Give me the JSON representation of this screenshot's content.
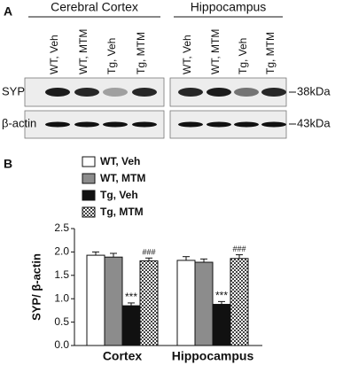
{
  "panel_a": {
    "label": "A",
    "groups": [
      "Cerebral Cortex",
      "Hippocampus"
    ],
    "lanes": [
      "WT, Veh",
      "WT, MTM",
      "Tg, Veh",
      "Tg, MTM"
    ],
    "rows": [
      {
        "name": "SYP",
        "size": "38kDa"
      },
      {
        "name": "β-actin",
        "size": "43kDa"
      }
    ]
  },
  "chart_data": {
    "type": "bar",
    "label": "B",
    "ylabel": "SYP/ β-actin",
    "categories": [
      "Cortex",
      "Hippocampus"
    ],
    "series": [
      {
        "name": "WT, Veh",
        "color": "#ffffff",
        "values": [
          1.93,
          1.82
        ],
        "errors": [
          0.07,
          0.08
        ]
      },
      {
        "name": "WT, MTM",
        "color": "#8c8c8c",
        "values": [
          1.89,
          1.78
        ],
        "errors": [
          0.08,
          0.07
        ]
      },
      {
        "name": "Tg, Veh",
        "color": "#111111",
        "values": [
          0.85,
          0.88
        ],
        "errors": [
          0.06,
          0.06
        ],
        "annotations": [
          "***",
          "***"
        ]
      },
      {
        "name": "Tg, MTM",
        "color": "#9a9a9a",
        "pattern": "checkerboard",
        "values": [
          1.81,
          1.86
        ],
        "errors": [
          0.06,
          0.08
        ],
        "annotations": [
          "###",
          "###"
        ]
      }
    ],
    "ylim": [
      0,
      2.5
    ],
    "yticks": [
      {
        "value": 0,
        "label": "0.0"
      },
      {
        "value": 0.5,
        "label": "0.5"
      },
      {
        "value": 1,
        "label": "1.0"
      },
      {
        "value": 1.5,
        "label": "1.5"
      },
      {
        "value": 2,
        "label": "2.0"
      },
      {
        "value": 2.5,
        "label": "2.5"
      }
    ]
  }
}
